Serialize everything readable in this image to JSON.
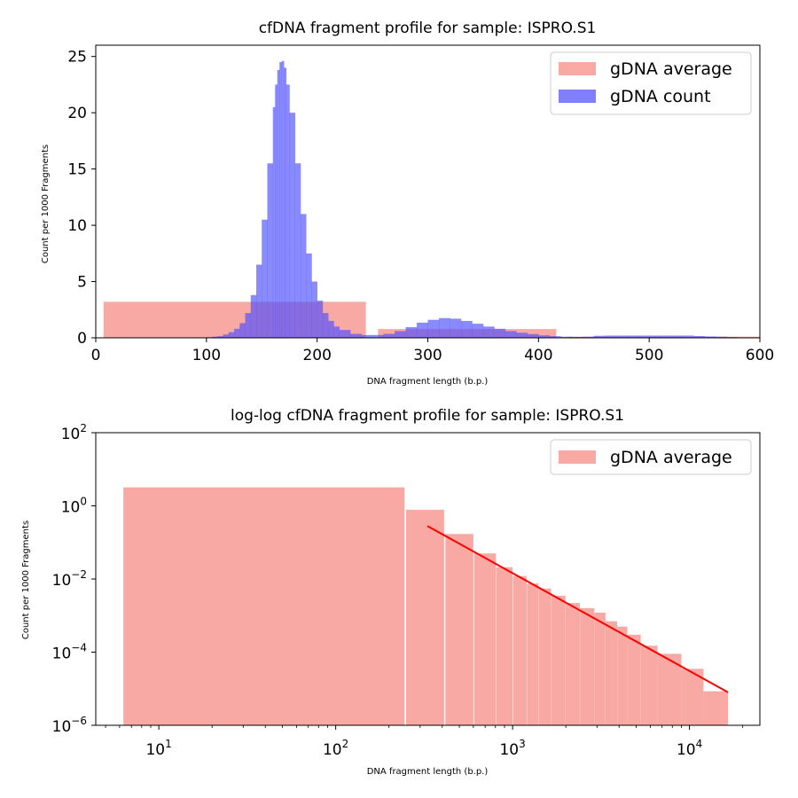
{
  "colors": {
    "average": "#f4756a",
    "count": "#4d4dff",
    "fit": "#ff0000"
  },
  "chart_data": [
    {
      "type": "bar",
      "title": "cfDNA fragment profile for sample: ISPRO.S1",
      "xlabel": "DNA fragment length (b.p.)",
      "ylabel": "Count per 1000 Fragments",
      "xlim": [
        0,
        600
      ],
      "ylim": [
        0,
        26
      ],
      "xticks": [
        "0",
        "100",
        "200",
        "300",
        "400",
        "500",
        "600"
      ],
      "yticks": [
        "0",
        "5",
        "10",
        "15",
        "20",
        "25"
      ],
      "legend_position": "top-right",
      "series": [
        {
          "name": "gDNA average",
          "kind": "wide-bars",
          "bars": [
            {
              "x0": 7,
              "x1": 244,
              "value": 3.2
            },
            {
              "x0": 255,
              "x1": 416,
              "value": 0.78
            },
            {
              "x0": 427,
              "x1": 600,
              "value": 0.1
            }
          ]
        },
        {
          "name": "gDNA count",
          "kind": "histogram",
          "x": [
            100,
            105,
            110,
            115,
            120,
            125,
            130,
            135,
            140,
            145,
            150,
            155,
            160,
            162,
            164,
            166,
            168,
            170,
            172,
            175,
            180,
            185,
            190,
            195,
            200,
            205,
            210,
            215,
            220,
            230,
            240,
            250,
            260,
            270,
            280,
            290,
            300,
            310,
            320,
            330,
            340,
            350,
            360,
            370,
            380,
            390,
            400,
            410,
            420,
            430,
            440,
            450,
            460,
            470,
            480,
            490,
            500,
            510,
            520,
            530,
            540,
            550,
            560,
            570,
            580
          ],
          "values": [
            0.05,
            0.1,
            0.15,
            0.3,
            0.5,
            0.8,
            1.3,
            2.2,
            3.8,
            6.5,
            10.5,
            15.5,
            20.5,
            22.5,
            23.8,
            24.5,
            24.6,
            24.0,
            22.5,
            20.0,
            15.5,
            11.0,
            7.5,
            5.0,
            3.3,
            2.2,
            1.5,
            1.0,
            0.7,
            0.35,
            0.25,
            0.25,
            0.35,
            0.6,
            0.95,
            1.35,
            1.6,
            1.75,
            1.7,
            1.5,
            1.25,
            1.0,
            0.8,
            0.6,
            0.45,
            0.33,
            0.22,
            0.15,
            0.1,
            0.08,
            0.1,
            0.18,
            0.2,
            0.2,
            0.2,
            0.2,
            0.2,
            0.2,
            0.2,
            0.2,
            0.16,
            0.12,
            0.1,
            0.07,
            0.03
          ]
        }
      ]
    },
    {
      "type": "bar",
      "title": "log-log cfDNA fragment profile for sample: ISPRO.S1",
      "xlabel": "DNA fragment length (b.p.)",
      "ylabel": "Count per 1000 Fragments",
      "xscale": "log",
      "yscale": "log",
      "xlim": [
        4.4,
        25000
      ],
      "ylim": [
        1e-06,
        100
      ],
      "xtick_values": [
        10,
        100,
        1000,
        10000
      ],
      "xticks": [
        "10",
        "10",
        "10",
        "10"
      ],
      "xtick_exponents": [
        "1",
        "2",
        "3",
        "4"
      ],
      "ytick_values": [
        1e-06,
        0.0001,
        0.01,
        1,
        100
      ],
      "yticks": [
        "10",
        "10",
        "10",
        "10",
        "10"
      ],
      "ytick_exponents": [
        "−6",
        "−4",
        "−2",
        "0",
        "2"
      ],
      "legend_position": "top-right",
      "series": [
        {
          "name": "gDNA average",
          "kind": "wide-bars",
          "bars": [
            {
              "x0": 6.3,
              "x1": 245,
              "value": 3.2
            },
            {
              "x0": 250,
              "x1": 410,
              "value": 0.78
            },
            {
              "x0": 417,
              "x1": 600,
              "value": 0.17
            },
            {
              "x0": 605,
              "x1": 805,
              "value": 0.05
            },
            {
              "x0": 810,
              "x1": 1000,
              "value": 0.021
            },
            {
              "x0": 1005,
              "x1": 1200,
              "value": 0.012
            },
            {
              "x0": 1205,
              "x1": 1400,
              "value": 0.0075
            },
            {
              "x0": 1405,
              "x1": 1650,
              "value": 0.0055
            },
            {
              "x0": 1655,
              "x1": 1990,
              "value": 0.0035
            },
            {
              "x0": 1995,
              "x1": 2400,
              "value": 0.0022
            },
            {
              "x0": 2405,
              "x1": 2900,
              "value": 0.0016
            },
            {
              "x0": 2905,
              "x1": 3350,
              "value": 0.0012
            },
            {
              "x0": 3355,
              "x1": 3900,
              "value": 0.0007
            },
            {
              "x0": 3905,
              "x1": 4450,
              "value": 0.0005
            },
            {
              "x0": 4455,
              "x1": 5300,
              "value": 0.0003
            },
            {
              "x0": 5305,
              "x1": 6600,
              "value": 0.00015
            },
            {
              "x0": 6605,
              "x1": 9000,
              "value": 9e-05
            },
            {
              "x0": 9005,
              "x1": 12000,
              "value": 3.5e-05
            },
            {
              "x0": 12005,
              "x1": 16500,
              "value": 8.5e-06
            }
          ]
        }
      ],
      "fit_line": {
        "x": [
          330,
          16500
        ],
        "y": [
          0.28,
          8e-06
        ]
      }
    }
  ]
}
